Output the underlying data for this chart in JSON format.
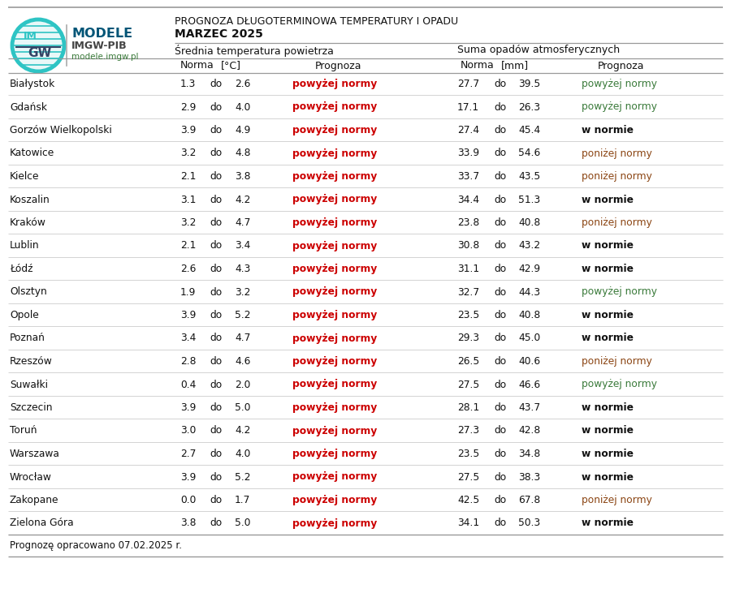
{
  "title_line1": "PROGNOZA DŁUGOTERMINOWA TEMPERATURY I OPADU",
  "title_line2": "MARZEC 2025",
  "section1_header": "Średnia temperatura powietrza",
  "section2_header": "Suma opadów atmosferycznych",
  "footer": "Prognozę opracowano 07.02.2025 r.",
  "cities": [
    "Białystok",
    "Gdańsk",
    "Gorzów Wielkopolski",
    "Katowice",
    "Kielce",
    "Koszalin",
    "Kraków",
    "Lublin",
    "Łódź",
    "Olsztyn",
    "Opole",
    "Poznań",
    "Rzeszów",
    "Suwałki",
    "Szczecin",
    "Toruń",
    "Warszawa",
    "Wrocław",
    "Zakopane",
    "Zielona Góra"
  ],
  "temp_norma_low": [
    1.3,
    2.9,
    3.9,
    3.2,
    2.1,
    3.1,
    3.2,
    2.1,
    2.6,
    1.9,
    3.9,
    3.4,
    2.8,
    0.4,
    3.9,
    3.0,
    2.7,
    3.9,
    0.0,
    3.8
  ],
  "temp_norma_high": [
    2.6,
    4.0,
    4.9,
    4.8,
    3.8,
    4.2,
    4.7,
    3.4,
    4.3,
    3.2,
    5.2,
    4.7,
    4.6,
    2.0,
    5.0,
    4.2,
    4.0,
    5.2,
    1.7,
    5.0
  ],
  "temp_prognoza": [
    "powyżej normy",
    "powyżej normy",
    "powyżej normy",
    "powyżej normy",
    "powyżej normy",
    "powyżej normy",
    "powyżej normy",
    "powyżej normy",
    "powyżej normy",
    "powyżej normy",
    "powyżej normy",
    "powyżej normy",
    "powyżej normy",
    "powyżej normy",
    "powyżej normy",
    "powyżej normy",
    "powyżej normy",
    "powyżej normy",
    "powyżej normy",
    "powyżej normy"
  ],
  "precip_norma_low": [
    27.7,
    17.1,
    27.4,
    33.9,
    33.7,
    34.4,
    23.8,
    30.8,
    31.1,
    32.7,
    23.5,
    29.3,
    26.5,
    27.5,
    28.1,
    27.3,
    23.5,
    27.5,
    42.5,
    34.1
  ],
  "precip_norma_high": [
    39.5,
    26.3,
    45.4,
    54.6,
    43.5,
    51.3,
    40.8,
    43.2,
    42.9,
    44.3,
    40.8,
    45.0,
    40.6,
    46.6,
    43.7,
    42.8,
    34.8,
    38.3,
    67.8,
    50.3
  ],
  "precip_prognoza": [
    "powyżej normy",
    "powyżej normy",
    "w normie",
    "poniżej normy",
    "poniżej normy",
    "w normie",
    "poniżej normy",
    "w normie",
    "w normie",
    "powyżej normy",
    "w normie",
    "w normie",
    "poniżej normy",
    "powyżej normy",
    "w normie",
    "w normie",
    "w normie",
    "w normie",
    "poniżej normy",
    "w normie"
  ],
  "precip_prognoza_colors": [
    "#3a7a3a",
    "#3a7a3a",
    "#111111",
    "#8b4513",
    "#8b4513",
    "#111111",
    "#8b4513",
    "#111111",
    "#111111",
    "#3a7a3a",
    "#111111",
    "#111111",
    "#8b4513",
    "#3a7a3a",
    "#111111",
    "#111111",
    "#111111",
    "#111111",
    "#8b4513",
    "#111111"
  ],
  "precip_prognoza_bold": [
    false,
    false,
    true,
    false,
    false,
    true,
    false,
    true,
    true,
    false,
    true,
    true,
    false,
    false,
    true,
    true,
    true,
    true,
    false,
    true
  ],
  "temp_red": "#cc0000",
  "bg_color": "#ffffff",
  "line_color_heavy": "#999999",
  "line_color_light": "#cccccc",
  "modele_color": "#00aaaa",
  "imgw_color": "#444444",
  "url_color": "#3a7a3a",
  "text_color": "#111111"
}
